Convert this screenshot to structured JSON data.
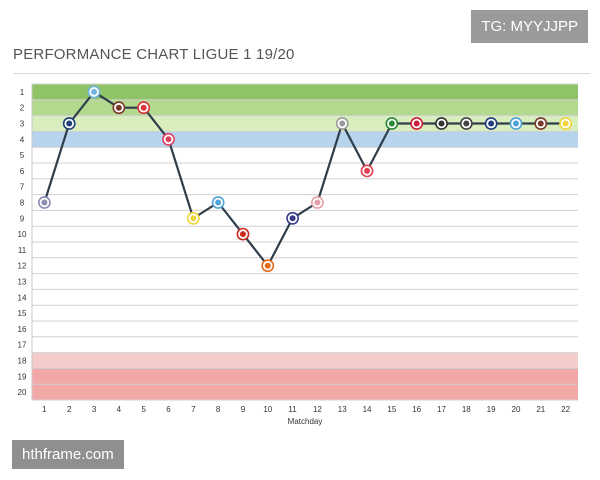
{
  "chart_data": {
    "type": "line",
    "title": "PERFORMANCE CHART LIGUE 1 19/20",
    "xlabel": "Matchday",
    "ylabel": "",
    "x": [
      1,
      2,
      3,
      4,
      5,
      6,
      7,
      8,
      9,
      10,
      11,
      12,
      13,
      14,
      15,
      16,
      17,
      18,
      19,
      20,
      21,
      22
    ],
    "series": [
      {
        "values": [
          8,
          3,
          1,
          2,
          2,
          4,
          9,
          8,
          10,
          12,
          9,
          8,
          3,
          6,
          3,
          3,
          3,
          3,
          3,
          3,
          3,
          3
        ]
      }
    ],
    "yticks": [
      1,
      2,
      3,
      4,
      5,
      6,
      7,
      8,
      9,
      10,
      11,
      12,
      13,
      14,
      15,
      16,
      17,
      18,
      19,
      20
    ],
    "ylim": [
      1,
      20
    ],
    "y_inverted": true,
    "grid": true,
    "bands": [
      {
        "from": 1,
        "to": 2,
        "color": "#8ec466"
      },
      {
        "from": 2,
        "to": 3,
        "color": "#b3d98e"
      },
      {
        "from": 3,
        "to": 4,
        "color": "#d9eebd"
      },
      {
        "from": 4,
        "to": 5,
        "color": "#b7d3ee"
      },
      {
        "from": 18,
        "to": 19,
        "color": "#f5cccc"
      },
      {
        "from": 19,
        "to": 21,
        "color": "#f3a8a8"
      }
    ],
    "line_color": "#2f3e4a",
    "badge_colors": [
      "#8a8fb3",
      "#1f3f7a",
      "#6fb4e0",
      "#7a3a2a",
      "#d8343a",
      "#e04060",
      "#f1d53a",
      "#4fa3d8",
      "#cc2a1e",
      "#e26a1c",
      "#3a3a8c",
      "#e6a0a8",
      "#9a9a9a",
      "#e04050",
      "#2a8a3a",
      "#cc1e3a",
      "#333333",
      "#444444",
      "#1f3f7a",
      "#4fa3d8",
      "#7a3a2a",
      "#f1d53a"
    ]
  },
  "watermarks": {
    "top": "TG: MYYJJPP",
    "bottom": "hthframe.com"
  }
}
